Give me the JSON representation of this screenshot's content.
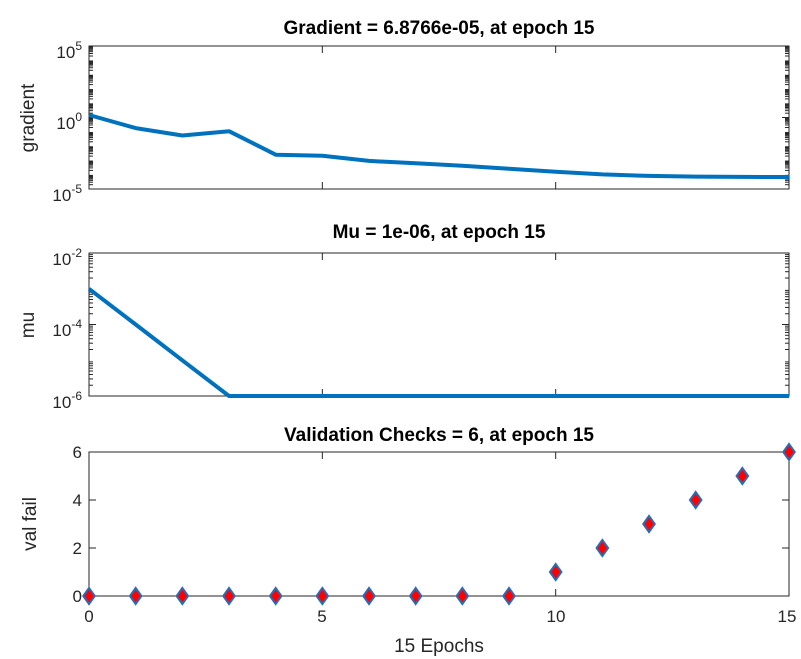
{
  "chart_data": [
    {
      "type": "line",
      "title": "Gradient = 6.8766e-05, at epoch 15",
      "ylabel": "gradient",
      "xlabel": "",
      "yscale": "log",
      "ylim": [
        1e-05,
        100000
      ],
      "xlim": [
        0,
        15
      ],
      "yticks": [
        {
          "base": "10",
          "exp": "5"
        },
        {
          "base": "10",
          "exp": "0"
        },
        {
          "base": "10",
          "exp": "-5"
        }
      ],
      "color": "#0072bd",
      "x": [
        0,
        1,
        2,
        3,
        4,
        5,
        6,
        7,
        8,
        9,
        10,
        11,
        12,
        13,
        14,
        15
      ],
      "y": [
        1.5,
        0.18,
        0.055,
        0.11,
        0.0025,
        0.0021,
        0.00092,
        0.00063,
        0.00042,
        0.00026,
        0.00016,
        0.000105,
        8.2e-05,
        7.4e-05,
        7e-05,
        6.8766e-05
      ]
    },
    {
      "type": "line",
      "title": "Mu = 1e-06, at epoch 15",
      "ylabel": "mu",
      "xlabel": "",
      "yscale": "log",
      "ylim": [
        1e-06,
        0.01
      ],
      "xlim": [
        0,
        15
      ],
      "yticks": [
        {
          "base": "10",
          "exp": "-2"
        },
        {
          "base": "10",
          "exp": "-4"
        },
        {
          "base": "10",
          "exp": "-6"
        }
      ],
      "color": "#0072bd",
      "x": [
        0,
        1,
        2,
        3,
        4,
        5,
        6,
        7,
        8,
        9,
        10,
        11,
        12,
        13,
        14,
        15
      ],
      "y": [
        0.001,
        0.0001,
        1e-05,
        1e-06,
        1e-06,
        1e-06,
        1e-06,
        1e-06,
        1e-06,
        1e-06,
        1e-06,
        1e-06,
        1e-06,
        1e-06,
        1e-06,
        1e-06
      ]
    },
    {
      "type": "scatter",
      "title": "Validation Checks = 6, at epoch 15",
      "ylabel": "val fail",
      "xlabel": "15 Epochs",
      "ylim": [
        0,
        6
      ],
      "xlim": [
        0,
        15
      ],
      "yticks": [
        "0",
        "2",
        "4",
        "6"
      ],
      "xticks": [
        "0",
        "5",
        "10",
        "15"
      ],
      "marker": "diamond",
      "marker_fill": "#ff0000",
      "marker_edge": "#2a6bb5",
      "x": [
        0,
        1,
        2,
        3,
        4,
        5,
        6,
        7,
        8,
        9,
        10,
        11,
        12,
        13,
        14,
        15
      ],
      "y": [
        0,
        0,
        0,
        0,
        0,
        0,
        0,
        0,
        0,
        0,
        1,
        2,
        3,
        4,
        5,
        6
      ]
    }
  ]
}
